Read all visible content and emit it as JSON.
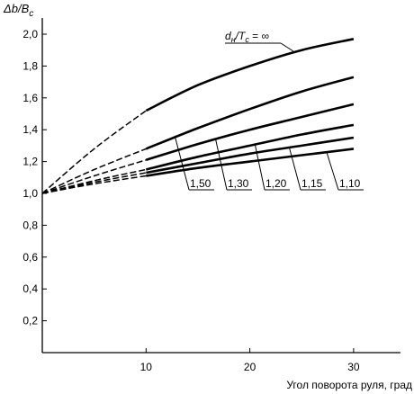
{
  "chart_data": {
    "type": "line",
    "title": "",
    "ylabel": "Δb/B",
    "ylabel_sub": "c",
    "xlabel": "Угол поворота руля, град",
    "xlim": [
      0,
      35
    ],
    "ylim": [
      0,
      2.1
    ],
    "x_ticks": [
      10,
      20,
      30
    ],
    "x_tick_labels": [
      "10",
      "20",
      "30"
    ],
    "y_ticks": [
      0.2,
      0.4,
      0.6,
      0.8,
      1.0,
      1.2,
      1.4,
      1.6,
      1.8,
      2.0
    ],
    "y_tick_labels": [
      "0,2",
      "0,4",
      "0,6",
      "0,8",
      "1,0",
      "1,2",
      "1,4",
      "1,6",
      "1,8",
      "2,0"
    ],
    "grid": false,
    "legend": "none",
    "dashed_below_x": 10,
    "series": [
      {
        "name": "d_н/T_c = ∞",
        "x": [
          0,
          5,
          10,
          15,
          20,
          25,
          30
        ],
        "y": [
          1.0,
          1.28,
          1.52,
          1.68,
          1.8,
          1.9,
          1.97
        ]
      },
      {
        "name": "1,50",
        "x": [
          0,
          5,
          10,
          15,
          20,
          25,
          30
        ],
        "y": [
          1.0,
          1.15,
          1.28,
          1.41,
          1.53,
          1.64,
          1.73
        ]
      },
      {
        "name": "1,30",
        "x": [
          0,
          5,
          10,
          15,
          20,
          25,
          30
        ],
        "y": [
          1.0,
          1.11,
          1.21,
          1.31,
          1.4,
          1.48,
          1.56
        ]
      },
      {
        "name": "1,20",
        "x": [
          0,
          5,
          10,
          15,
          20,
          25,
          30
        ],
        "y": [
          1.0,
          1.08,
          1.15,
          1.23,
          1.3,
          1.37,
          1.43
        ]
      },
      {
        "name": "1,15",
        "x": [
          0,
          5,
          10,
          15,
          20,
          25,
          30
        ],
        "y": [
          1.0,
          1.07,
          1.13,
          1.19,
          1.25,
          1.3,
          1.35
        ]
      },
      {
        "name": "1,10",
        "x": [
          0,
          5,
          10,
          15,
          20,
          25,
          30
        ],
        "y": [
          1.0,
          1.06,
          1.11,
          1.16,
          1.2,
          1.24,
          1.28
        ]
      }
    ],
    "annotations": {
      "top_label_prefix_d": "d",
      "top_label_sub_h": "н",
      "top_label_slash_T": "/T",
      "top_label_sub_c": "c",
      "top_label_eq": " = ∞",
      "bottom_labels": [
        "1,50",
        "1,30",
        "1,20",
        "1,15",
        "1,10"
      ]
    }
  }
}
